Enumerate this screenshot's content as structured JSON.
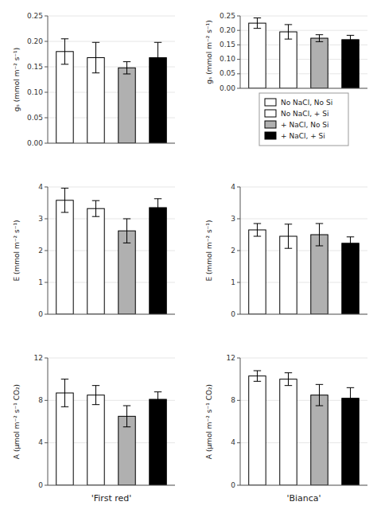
{
  "chart_data": [
    {
      "type": "bar",
      "categories": [
        null
      ],
      "ylabel": "gₛ (mmol m⁻² s⁻¹)",
      "ylim": [
        0,
        0.25
      ],
      "yticks": [
        {
          "value": 0,
          "label": "0.00"
        },
        0.05,
        {
          "value": 0.1,
          "label": "0.10"
        },
        0.15,
        {
          "value": 0.2,
          "label": "0.20"
        },
        0.25
      ],
      "series": [
        {
          "name": "No NaCl, No Si",
          "color": "white",
          "values": [
            0.18
          ],
          "errors": [
            0.025
          ]
        },
        {
          "name": "No NaCl, + Si",
          "color": "white",
          "values": [
            0.168
          ],
          "errors": [
            0.03
          ]
        },
        {
          "name": "+ NaCl, No Si",
          "color": "#b0b0b0",
          "values": [
            0.148
          ],
          "errors": [
            0.012
          ]
        },
        {
          "name": "+ NaCl, + Si",
          "color": "black",
          "values": [
            0.168
          ],
          "errors": [
            0.03
          ]
        }
      ]
    },
    {
      "type": "bar",
      "categories": [
        null
      ],
      "ylabel": "gₛ (mmol m⁻² s⁻¹)",
      "ylim": [
        0,
        0.25
      ],
      "yticks": [
        {
          "value": 0,
          "label": "0.00"
        },
        0.05,
        {
          "value": 0.1,
          "label": "0.10"
        },
        0.15,
        {
          "value": 0.2,
          "label": "0.20"
        },
        0.25
      ],
      "legend": "below",
      "series": [
        {
          "name": "No NaCl, No Si",
          "color": "white",
          "values": [
            0.225
          ],
          "errors": [
            0.018
          ]
        },
        {
          "name": "No NaCl, + Si",
          "color": "white",
          "values": [
            0.195
          ],
          "errors": [
            0.025
          ]
        },
        {
          "name": "+ NaCl, No Si",
          "color": "#b0b0b0",
          "values": [
            0.173
          ],
          "errors": [
            0.012
          ]
        },
        {
          "name": "+ NaCl, + Si",
          "color": "black",
          "values": [
            0.168
          ],
          "errors": [
            0.015
          ]
        }
      ]
    },
    {
      "type": "bar",
      "categories": [
        null
      ],
      "ylabel": "E (mmol m⁻² s⁻¹)",
      "ylim": [
        0,
        4
      ],
      "yticks": [
        0,
        1,
        2,
        3,
        4
      ],
      "series": [
        {
          "name": "No NaCl, No Si",
          "color": "white",
          "values": [
            3.58
          ],
          "errors": [
            0.38
          ]
        },
        {
          "name": "No NaCl, + Si",
          "color": "white",
          "values": [
            3.32
          ],
          "errors": [
            0.25
          ]
        },
        {
          "name": "+ NaCl, No Si",
          "color": "#b0b0b0",
          "values": [
            2.62
          ],
          "errors": [
            0.38
          ]
        },
        {
          "name": "+ NaCl, + Si",
          "color": "black",
          "values": [
            3.35
          ],
          "errors": [
            0.28
          ]
        }
      ]
    },
    {
      "type": "bar",
      "categories": [
        null
      ],
      "ylabel": "E (mmol m⁻² s⁻¹)",
      "ylim": [
        0,
        4
      ],
      "yticks": [
        0,
        1,
        2,
        3,
        4
      ],
      "series": [
        {
          "name": "No NaCl, No Si",
          "color": "white",
          "values": [
            2.65
          ],
          "errors": [
            0.2
          ]
        },
        {
          "name": "No NaCl, + Si",
          "color": "white",
          "values": [
            2.45
          ],
          "errors": [
            0.38
          ]
        },
        {
          "name": "+ NaCl, No Si",
          "color": "#b0b0b0",
          "values": [
            2.5
          ],
          "errors": [
            0.35
          ]
        },
        {
          "name": "+ NaCl, + Si",
          "color": "black",
          "values": [
            2.23
          ],
          "errors": [
            0.2
          ]
        }
      ]
    },
    {
      "type": "bar",
      "categories": [
        null
      ],
      "ylabel": "A (μmol m⁻² s⁻¹ CO₂)",
      "xlabel": "'First red'",
      "ylim": [
        0,
        12
      ],
      "yticks": [
        0,
        4,
        8,
        12
      ],
      "series": [
        {
          "name": "No NaCl, No Si",
          "color": "white",
          "values": [
            8.7
          ],
          "errors": [
            1.3
          ]
        },
        {
          "name": "No NaCl, + Si",
          "color": "white",
          "values": [
            8.5
          ],
          "errors": [
            0.9
          ]
        },
        {
          "name": "+ NaCl, No Si",
          "color": "#b0b0b0",
          "values": [
            6.5
          ],
          "errors": [
            1.0
          ]
        },
        {
          "name": "+ NaCl, + Si",
          "color": "black",
          "values": [
            8.1
          ],
          "errors": [
            0.7
          ]
        }
      ]
    },
    {
      "type": "bar",
      "categories": [
        null
      ],
      "ylabel": "A (μmol m⁻² s⁻¹ CO₂)",
      "xlabel": "'Bianca'",
      "ylim": [
        0,
        12
      ],
      "yticks": [
        0,
        4,
        8,
        12
      ],
      "series": [
        {
          "name": "No NaCl, No Si",
          "color": "white",
          "values": [
            10.3
          ],
          "errors": [
            0.5
          ]
        },
        {
          "name": "No NaCl, + Si",
          "color": "white",
          "values": [
            10.0
          ],
          "errors": [
            0.6
          ]
        },
        {
          "name": "+ NaCl, No Si",
          "color": "#b0b0b0",
          "values": [
            8.5
          ],
          "errors": [
            1.0
          ]
        },
        {
          "name": "+ NaCl, + Si",
          "color": "black",
          "values": [
            8.2
          ],
          "errors": [
            1.0
          ]
        }
      ]
    }
  ]
}
